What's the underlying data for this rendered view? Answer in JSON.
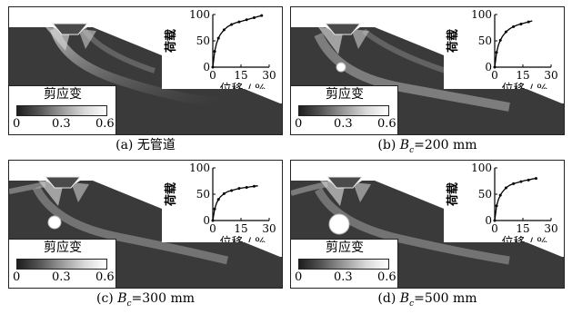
{
  "colorbar": {
    "title": "剪应变",
    "ticks": [
      "0",
      "0.3",
      "0.6"
    ]
  },
  "chart_data": [
    {
      "type": "line",
      "panel": "a",
      "xlabel": "位移 / %",
      "ylabel": "荷载",
      "xlim": [
        0,
        30
      ],
      "ylim": [
        0,
        100
      ],
      "x_ticks": [
        "0",
        "15",
        "30"
      ],
      "y_ticks": [
        "0",
        "50",
        "100"
      ],
      "x": [
        0,
        1,
        2,
        3,
        4,
        6,
        8,
        10,
        12,
        14,
        16,
        18,
        20,
        22,
        24,
        26
      ],
      "y": [
        0,
        30,
        45,
        55,
        62,
        71,
        77,
        81,
        84,
        86,
        88,
        90,
        92,
        94,
        96,
        98
      ]
    },
    {
      "type": "line",
      "panel": "b",
      "xlabel": "位移 / %",
      "ylabel": "荷载",
      "xlim": [
        0,
        30
      ],
      "ylim": [
        0,
        100
      ],
      "x_ticks": [
        "0",
        "15",
        "30"
      ],
      "y_ticks": [
        "0",
        "50",
        "100"
      ],
      "x": [
        0,
        1,
        2,
        3,
        4,
        6,
        8,
        10,
        12,
        14,
        16,
        18,
        20
      ],
      "y": [
        0,
        28,
        42,
        51,
        58,
        67,
        73,
        77,
        80,
        82,
        84,
        86,
        88
      ]
    },
    {
      "type": "line",
      "panel": "c",
      "xlabel": "位移 / %",
      "ylabel": "荷载",
      "xlim": [
        0,
        30
      ],
      "ylim": [
        0,
        100
      ],
      "x_ticks": [
        "0",
        "15",
        "30"
      ],
      "y_ticks": [
        "0",
        "50",
        "100"
      ],
      "x": [
        0,
        1,
        2,
        3,
        4,
        6,
        8,
        10,
        12,
        14,
        16,
        18,
        20,
        22,
        24
      ],
      "y": [
        0,
        22,
        33,
        40,
        45,
        51,
        55,
        57,
        59,
        61,
        62,
        63,
        64,
        65,
        66
      ]
    },
    {
      "type": "line",
      "panel": "d",
      "xlabel": "位移 / %",
      "ylabel": "荷载",
      "xlim": [
        0,
        30
      ],
      "ylim": [
        0,
        100
      ],
      "x_ticks": [
        "0",
        "15",
        "30"
      ],
      "y_ticks": [
        "0",
        "50",
        "100"
      ],
      "x": [
        0,
        1,
        2,
        3,
        4,
        6,
        8,
        10,
        12,
        14,
        16,
        18,
        20,
        22
      ],
      "y": [
        0,
        28,
        40,
        48,
        54,
        62,
        67,
        70,
        72,
        74,
        76,
        77,
        79,
        80
      ]
    }
  ],
  "captions": [
    {
      "label": "(a) 无管道",
      "prefix": "",
      "sub": "",
      "value": ""
    },
    {
      "label": "(b) ",
      "prefix": "B",
      "sub": "c",
      "value": "=200 mm"
    },
    {
      "label": "(c) ",
      "prefix": "B",
      "sub": "c",
      "value": "=300 mm"
    },
    {
      "label": "(d) ",
      "prefix": "B",
      "sub": "c",
      "value": "=500 mm"
    }
  ]
}
